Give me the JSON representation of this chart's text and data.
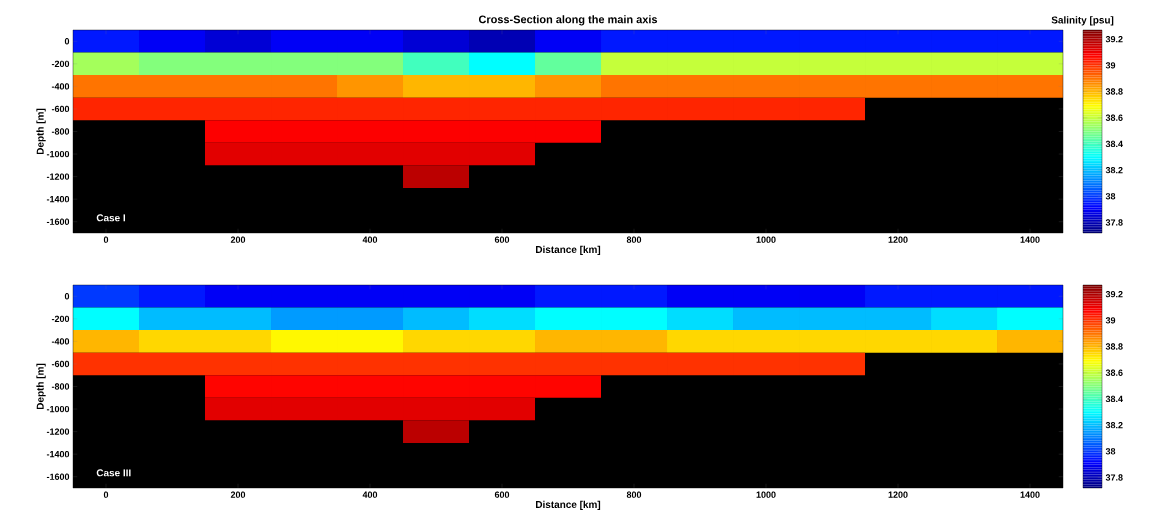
{
  "chart_data": [
    {
      "type": "heatmap",
      "title": "Cross-Section along the main axis",
      "xlabel": "Distance [km]",
      "ylabel": "Depth [m]",
      "clabel": "Salinity [psu]",
      "categories": [
        "0",
        null,
        "200",
        null,
        "400",
        null,
        "600",
        null,
        "800",
        null,
        "1000",
        null,
        "1200",
        null,
        "1400"
      ],
      "y_categories": [
        "0",
        "-200",
        "-400",
        "-600",
        "-800",
        "-1000",
        "-1200",
        "-1400",
        "-1600"
      ],
      "clim": [
        37.72,
        39.27
      ],
      "cticks": [
        37.8,
        38,
        38.2,
        38.4,
        38.6,
        38.8,
        39,
        39.2
      ],
      "cells": [
        [
          37.95,
          37.9,
          37.85,
          37.9,
          37.9,
          37.85,
          37.8,
          37.9,
          37.95,
          37.95,
          37.95,
          37.95,
          37.95,
          37.95,
          37.95
        ],
        [
          38.55,
          38.5,
          38.5,
          38.5,
          38.5,
          38.4,
          38.3,
          38.45,
          38.6,
          38.6,
          38.6,
          38.6,
          38.6,
          38.6,
          38.6
        ],
        [
          38.9,
          38.9,
          38.9,
          38.9,
          38.85,
          38.8,
          38.8,
          38.85,
          38.9,
          38.9,
          38.9,
          38.9,
          38.9,
          38.9,
          38.9
        ],
        [
          39.02,
          39.02,
          39.02,
          39.02,
          39.02,
          39.02,
          39.02,
          39.02,
          39.02,
          39.02,
          39.02,
          39.02,
          null,
          null,
          null
        ],
        [
          null,
          null,
          39.08,
          39.08,
          39.08,
          39.08,
          39.08,
          39.08,
          null,
          null,
          null,
          null,
          null,
          null,
          null
        ],
        [
          null,
          null,
          39.12,
          39.12,
          39.12,
          39.12,
          39.12,
          null,
          null,
          null,
          null,
          null,
          null,
          null,
          null
        ],
        [
          null,
          null,
          null,
          null,
          null,
          39.18,
          null,
          null,
          null,
          null,
          null,
          null,
          null,
          null,
          null
        ],
        [
          null,
          null,
          null,
          null,
          null,
          null,
          null,
          null,
          null,
          null,
          null,
          null,
          null,
          null,
          null
        ],
        [
          null,
          null,
          null,
          null,
          null,
          null,
          null,
          null,
          null,
          null,
          null,
          null,
          null,
          null,
          null
        ]
      ],
      "annotations": [
        "Case I"
      ]
    },
    {
      "type": "heatmap",
      "xlabel": "Distance [km]",
      "ylabel": "Depth [m]",
      "categories": [
        "0",
        null,
        "200",
        null,
        "400",
        null,
        "600",
        null,
        "800",
        null,
        "1000",
        null,
        "1200",
        null,
        "1400"
      ],
      "y_categories": [
        "0",
        "-200",
        "-400",
        "-600",
        "-800",
        "-1000",
        "-1200",
        "-1400",
        "-1600"
      ],
      "clim": [
        37.72,
        39.27
      ],
      "cticks": [
        37.8,
        38,
        38.2,
        38.4,
        38.6,
        38.8,
        39,
        39.2
      ],
      "cells": [
        [
          38.0,
          37.95,
          37.9,
          37.9,
          37.9,
          37.9,
          37.9,
          37.95,
          37.95,
          37.9,
          37.9,
          37.9,
          37.95,
          37.95,
          37.95
        ],
        [
          38.3,
          38.2,
          38.2,
          38.15,
          38.15,
          38.2,
          38.25,
          38.3,
          38.3,
          38.25,
          38.2,
          38.2,
          38.2,
          38.25,
          38.3
        ],
        [
          38.8,
          38.75,
          38.75,
          38.7,
          38.7,
          38.75,
          38.75,
          38.8,
          38.8,
          38.75,
          38.75,
          38.75,
          38.75,
          38.75,
          38.8
        ],
        [
          39.0,
          39.0,
          39.0,
          39.0,
          39.0,
          39.0,
          39.0,
          39.0,
          39.0,
          39.0,
          39.0,
          39.0,
          null,
          null,
          null
        ],
        [
          null,
          null,
          39.07,
          39.07,
          39.07,
          39.07,
          39.07,
          39.07,
          null,
          null,
          null,
          null,
          null,
          null,
          null
        ],
        [
          null,
          null,
          39.12,
          39.12,
          39.12,
          39.12,
          39.12,
          null,
          null,
          null,
          null,
          null,
          null,
          null,
          null
        ],
        [
          null,
          null,
          null,
          null,
          null,
          39.18,
          null,
          null,
          null,
          null,
          null,
          null,
          null,
          null,
          null
        ],
        [
          null,
          null,
          null,
          null,
          null,
          null,
          null,
          null,
          null,
          null,
          null,
          null,
          null,
          null,
          null
        ],
        [
          null,
          null,
          null,
          null,
          null,
          null,
          null,
          null,
          null,
          null,
          null,
          null,
          null,
          null,
          null
        ]
      ],
      "annotations": [
        "Case III"
      ]
    }
  ]
}
